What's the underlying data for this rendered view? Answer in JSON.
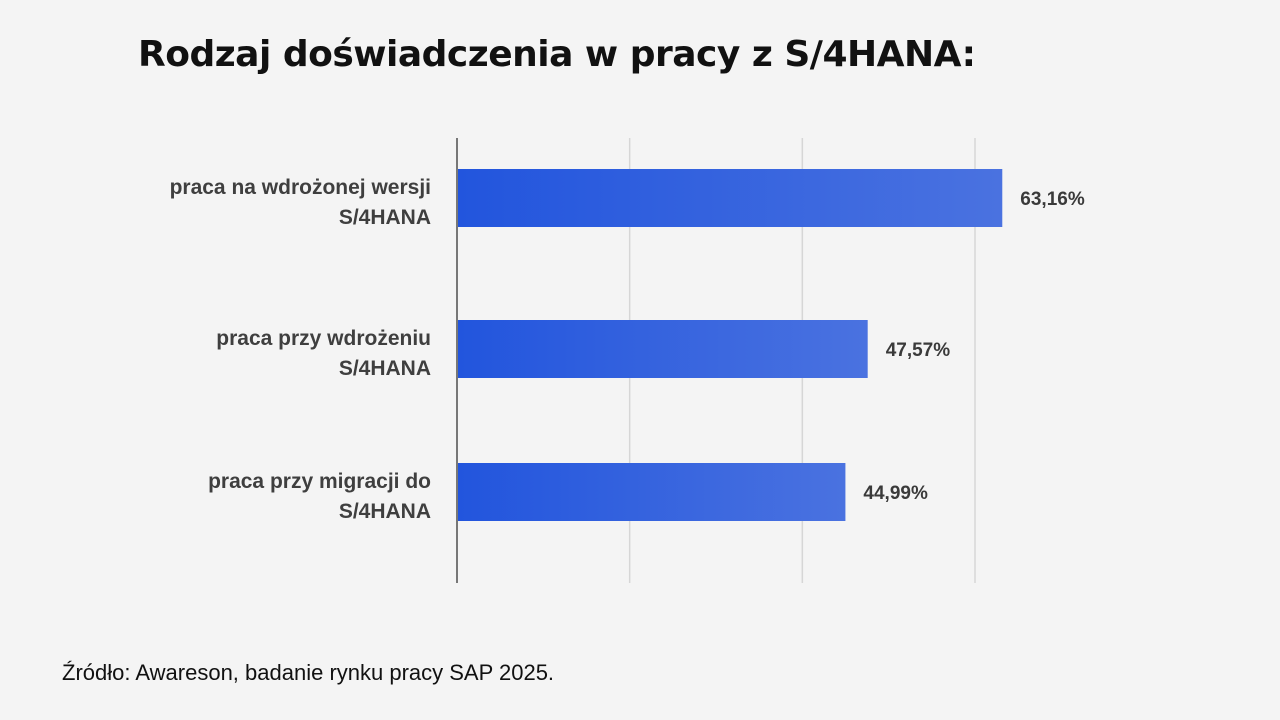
{
  "chart_data": {
    "type": "bar",
    "orientation": "horizontal",
    "title": "Rodzaj doświadczenia w pracy z S/4HANA:",
    "categories": [
      [
        "praca na wdrożonej wersji",
        "S/4HANA"
      ],
      [
        "praca przy wdrożeniu",
        "S/4HANA"
      ],
      [
        "praca przy migracji do",
        "S/4HANA"
      ]
    ],
    "values": [
      63.16,
      47.57,
      44.99
    ],
    "value_labels": [
      "63,16%",
      "47,57%",
      "44,99%"
    ],
    "xlim": [
      0,
      60
    ],
    "grid": true,
    "legend": "none",
    "colors": {
      "bar_start": "#2255dd",
      "bar_end": "#4a72e0",
      "grid": "#d6d6d6",
      "axis": "#777777"
    }
  },
  "source": "Źródło: Awareson, badanie rynku pracy SAP 2025."
}
